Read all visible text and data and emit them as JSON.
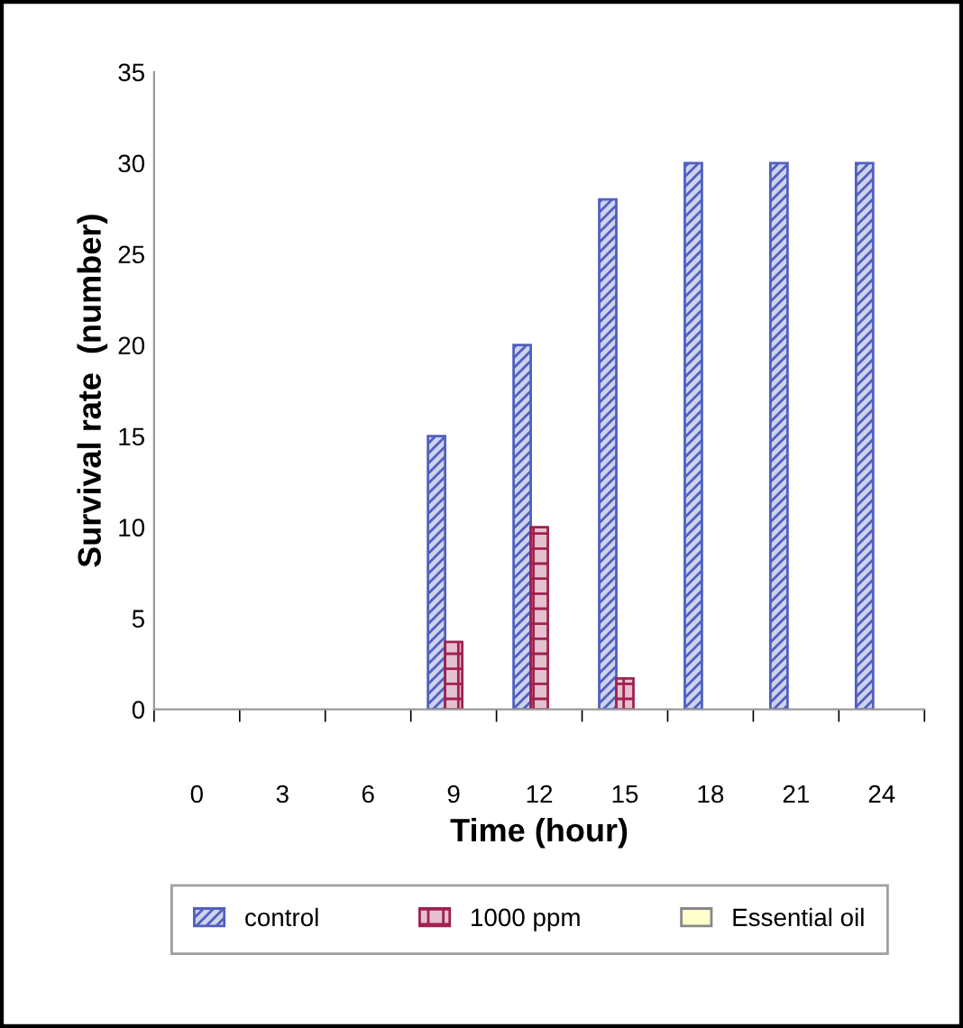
{
  "chart_data": {
    "type": "bar",
    "xlabel": "Time (hour)",
    "ylabel": "Survival rate  (number)",
    "categories": [
      "0",
      "3",
      "6",
      "9",
      "12",
      "15",
      "18",
      "21",
      "24"
    ],
    "series": [
      {
        "name": "control",
        "color": "#5060c0",
        "values": [
          0,
          0,
          0,
          15,
          20,
          28,
          30,
          30,
          30
        ]
      },
      {
        "name": "1000 ppm",
        "color": "#a02050",
        "values": [
          0,
          0,
          0,
          3.7,
          10,
          1.7,
          0,
          0,
          0
        ]
      },
      {
        "name": "Essential oil",
        "color": "#ffffcc",
        "values": [
          0,
          0,
          0,
          0,
          0,
          0,
          0,
          0,
          0
        ]
      }
    ],
    "ylim": [
      0,
      35
    ],
    "yticks": [
      0,
      5,
      10,
      15,
      20,
      25,
      30,
      35
    ],
    "grid": false,
    "legend": "bottom"
  }
}
